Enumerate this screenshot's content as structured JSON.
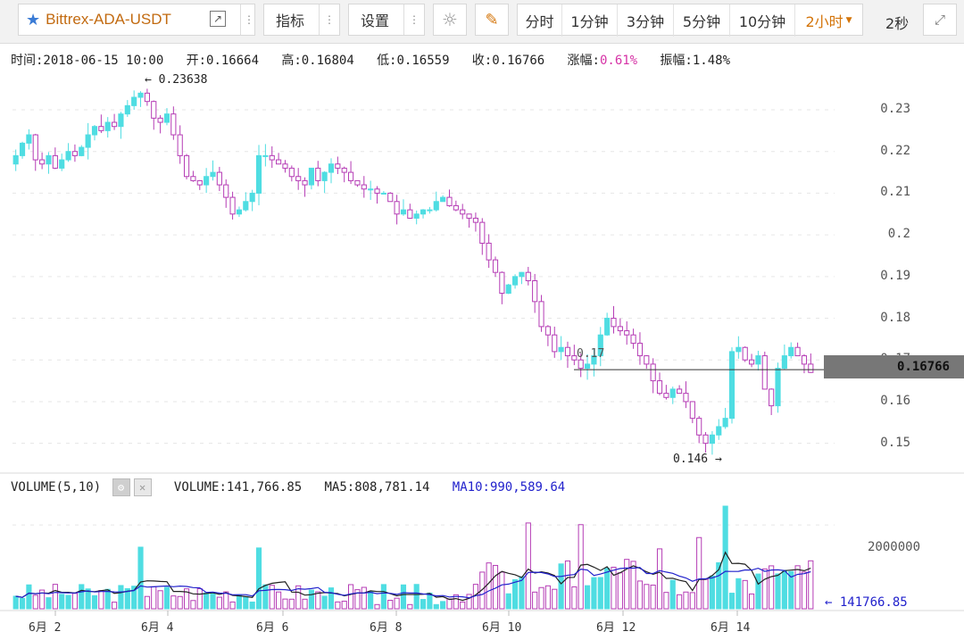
{
  "toolbar": {
    "symbol": "Bittrex-ADA-USDT",
    "indicator_label": "指标",
    "settings_label": "设置",
    "timeframes": [
      "分时",
      "1分钟",
      "3分钟",
      "5分钟",
      "10分钟",
      "2小时"
    ],
    "active_timeframe": "2小时",
    "refresh_label": "2秒",
    "icons": [
      "star-icon",
      "external-link-icon",
      "more-dots-icon",
      "sun-icon",
      "pencil-icon",
      "dropdown-arrow-icon",
      "fullscreen-icon"
    ]
  },
  "info_bar": {
    "time": "时间:2018-06-15 10:00",
    "open": "开:0.16664",
    "high": "高:0.16804",
    "low": "低:0.16559",
    "close": "收:0.16766",
    "change_label": "涨幅:",
    "change_value": "0.61%",
    "amplitude": "振幅:1.48%"
  },
  "volume_bar": {
    "title": "VOLUME(5,10)",
    "volume": "VOLUME:141,766.85",
    "ma5": "MA5:808,781.14",
    "ma10": "MA10:990,589.64"
  },
  "price_axis": [
    "0.23",
    "0.22",
    "0.21",
    "0.2",
    "0.19",
    "0.18",
    "0.17",
    "0.16",
    "0.15"
  ],
  "volume_axis": [
    "2000000"
  ],
  "current_price": "0.16766",
  "current_volume": "← 141766.85",
  "annotations": {
    "high_mark": "← 0.23638",
    "low_mark": "0.146 →",
    "level_label": "0.17"
  },
  "x_labels": [
    "6月 2",
    "6月 4",
    "6月 6",
    "6月 8",
    "6月 10",
    "6月 12",
    "6月 14"
  ],
  "colors": {
    "up": "#4fdde2",
    "down": "#b53cb5",
    "ma5": "#222222",
    "ma10": "#2222cc",
    "accent": "#d4750a"
  },
  "chart_data": {
    "type": "candlestick",
    "interval": "2h",
    "price_ylim": [
      0.145,
      0.236
    ],
    "closes": [
      0.219,
      0.222,
      0.224,
      0.218,
      0.217,
      0.219,
      0.216,
      0.218,
      0.22,
      0.219,
      0.221,
      0.224,
      0.226,
      0.225,
      0.227,
      0.226,
      0.229,
      0.231,
      0.233,
      0.234,
      0.232,
      0.228,
      0.227,
      0.229,
      0.224,
      0.219,
      0.214,
      0.213,
      0.212,
      0.214,
      0.215,
      0.212,
      0.209,
      0.205,
      0.206,
      0.208,
      0.21,
      0.219,
      0.219,
      0.218,
      0.217,
      0.216,
      0.214,
      0.213,
      0.212,
      0.216,
      0.213,
      0.215,
      0.217,
      0.216,
      0.215,
      0.213,
      0.212,
      0.211,
      0.211,
      0.21,
      0.21,
      0.208,
      0.205,
      0.206,
      0.204,
      0.205,
      0.206,
      0.206,
      0.208,
      0.209,
      0.207,
      0.206,
      0.205,
      0.204,
      0.203,
      0.198,
      0.194,
      0.191,
      0.186,
      0.188,
      0.19,
      0.191,
      0.189,
      0.184,
      0.178,
      0.176,
      0.172,
      0.173,
      0.171,
      0.17,
      0.168,
      0.169,
      0.171,
      0.176,
      0.18,
      0.178,
      0.177,
      0.176,
      0.174,
      0.171,
      0.169,
      0.165,
      0.162,
      0.161,
      0.163,
      0.162,
      0.16,
      0.156,
      0.152,
      0.15,
      0.152,
      0.154,
      0.156,
      0.172,
      0.173,
      0.17,
      0.169,
      0.171,
      0.163,
      0.159,
      0.168,
      0.171,
      0.173,
      0.171,
      0.169,
      0.167
    ],
    "volumes_ylim": [
      0,
      2600000
    ],
    "note_high": 0.23638,
    "note_low": 0.146,
    "last_price": 0.16766,
    "last_volume": 141766.85
  }
}
